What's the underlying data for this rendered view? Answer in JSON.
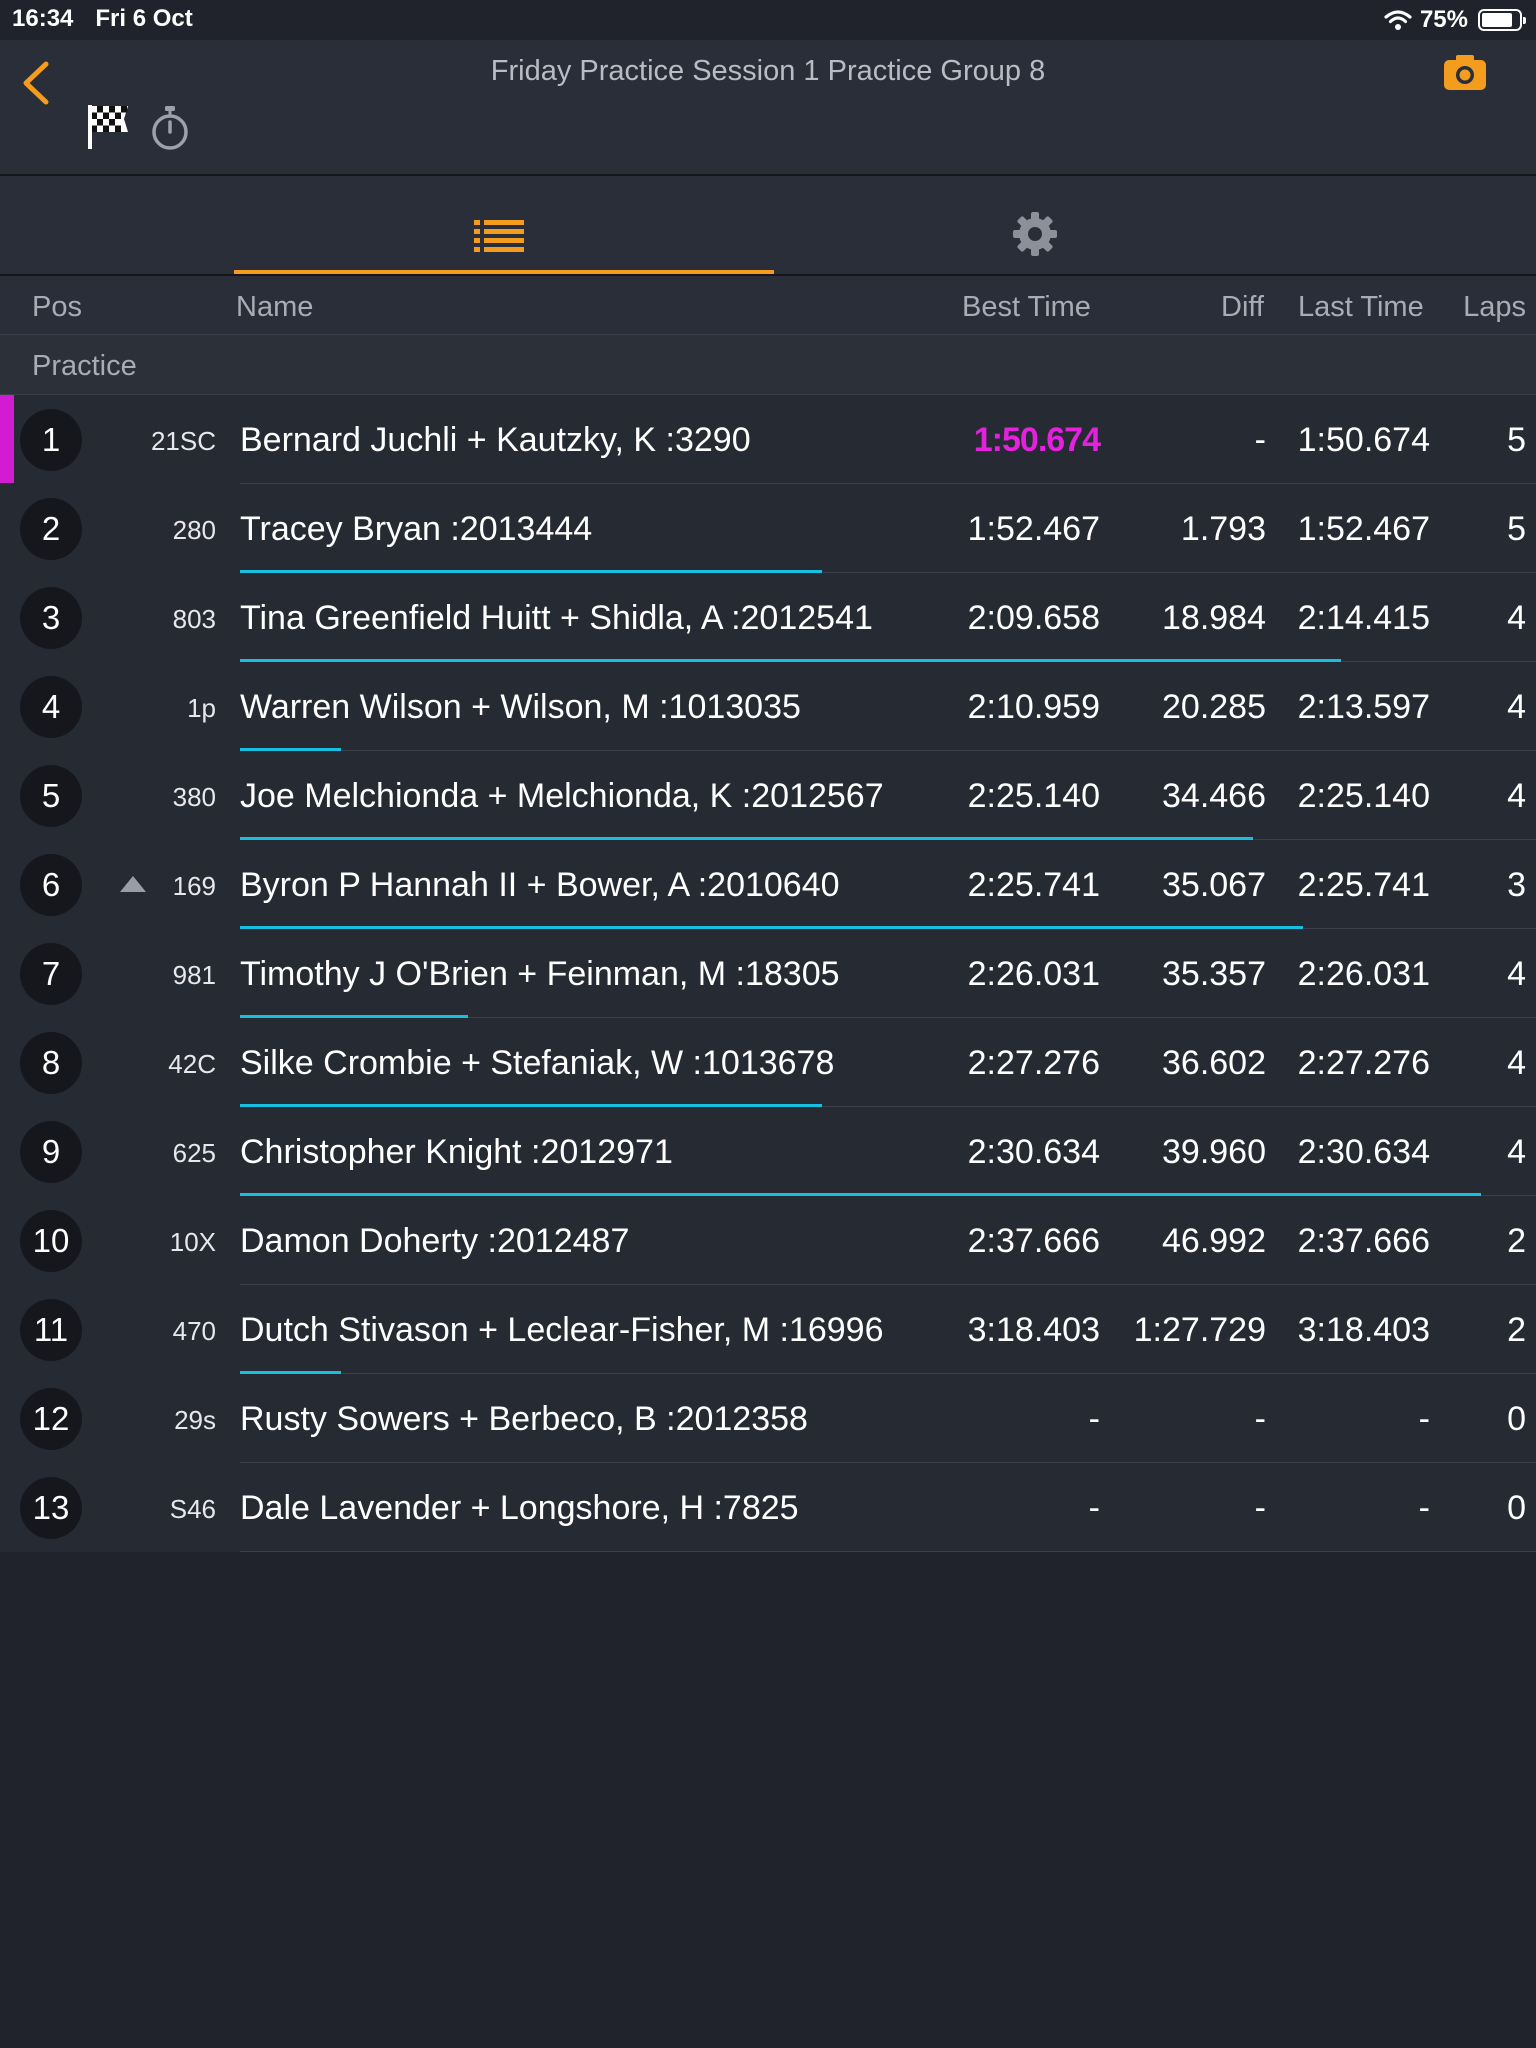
{
  "status_bar": {
    "time": "16:34",
    "date": "Fri 6 Oct",
    "battery": "75%"
  },
  "header": {
    "title": "Friday Practice Session 1 Practice Group 8"
  },
  "icons": {
    "back": "chevron-left-icon",
    "camera": "camera-icon",
    "flag": "checkered-flag-icon",
    "stopwatch": "stopwatch-icon",
    "list": "list-icon",
    "settings": "gear-icon"
  },
  "colors": {
    "accent": "#f39c1e",
    "fastest": "#e521e0",
    "progress": "#18bfe0"
  },
  "columns": {
    "pos": "Pos",
    "name": "Name",
    "best": "Best Time",
    "diff": "Diff",
    "last": "Last Time",
    "laps": "Laps"
  },
  "section": "Practice",
  "rows": [
    {
      "pos": "1",
      "car": "21SC",
      "name": "Bernard Juchli + Kautzky, K :3290",
      "best": "1:50.674",
      "diff": "-",
      "last": "1:50.674",
      "laps": "5",
      "fastest": true,
      "progress": 0
    },
    {
      "pos": "2",
      "car": "280",
      "name": "Tracey Bryan :2013444",
      "best": "1:52.467",
      "diff": "1.793",
      "last": "1:52.467",
      "laps": "5",
      "progress": 0.46
    },
    {
      "pos": "3",
      "car": "803",
      "name": "Tina Greenfield Huitt + Shidla, A :2012541",
      "best": "2:09.658",
      "diff": "18.984",
      "last": "2:14.415",
      "laps": "4",
      "progress": 0.87
    },
    {
      "pos": "4",
      "car": "1p",
      "name": "Warren Wilson + Wilson, M :1013035",
      "best": "2:10.959",
      "diff": "20.285",
      "last": "2:13.597",
      "laps": "4",
      "progress": 0.08
    },
    {
      "pos": "5",
      "car": "380",
      "name": "Joe Melchionda + Melchionda, K :2012567",
      "best": "2:25.140",
      "diff": "34.466",
      "last": "2:25.140",
      "laps": "4",
      "progress": 0.8
    },
    {
      "pos": "6",
      "car": "169",
      "name": "Byron P Hannah II + Bower, A :2010640",
      "best": "2:25.741",
      "diff": "35.067",
      "last": "2:25.741",
      "laps": "3",
      "arrow": true,
      "progress": 0.84
    },
    {
      "pos": "7",
      "car": "981",
      "name": "Timothy J O'Brien + Feinman, M :18305",
      "best": "2:26.031",
      "diff": "35.357",
      "last": "2:26.031",
      "laps": "4",
      "progress": 0.18
    },
    {
      "pos": "8",
      "car": "42C",
      "name": "Silke Crombie + Stefaniak, W :1013678",
      "best": "2:27.276",
      "diff": "36.602",
      "last": "2:27.276",
      "laps": "4",
      "progress": 0.46
    },
    {
      "pos": "9",
      "car": "625",
      "name": "Christopher Knight :2012971",
      "best": "2:30.634",
      "diff": "39.960",
      "last": "2:30.634",
      "laps": "4",
      "progress": 0.98
    },
    {
      "pos": "10",
      "car": "10X",
      "name": "Damon Doherty :2012487",
      "best": "2:37.666",
      "diff": "46.992",
      "last": "2:37.666",
      "laps": "2",
      "progress": 0
    },
    {
      "pos": "11",
      "car": "470",
      "name": "Dutch Stivason + Leclear-Fisher, M :16996",
      "best": "3:18.403",
      "diff": "1:27.729",
      "last": "3:18.403",
      "laps": "2",
      "progress": 0.08
    },
    {
      "pos": "12",
      "car": "29s",
      "name": "Rusty Sowers + Berbeco, B :2012358",
      "best": "-",
      "diff": "-",
      "last": "-",
      "laps": "0",
      "progress": 0
    },
    {
      "pos": "13",
      "car": "S46",
      "name": "Dale Lavender + Longshore, H :7825",
      "best": "-",
      "diff": "-",
      "last": "-",
      "laps": "0",
      "progress": 0
    }
  ]
}
